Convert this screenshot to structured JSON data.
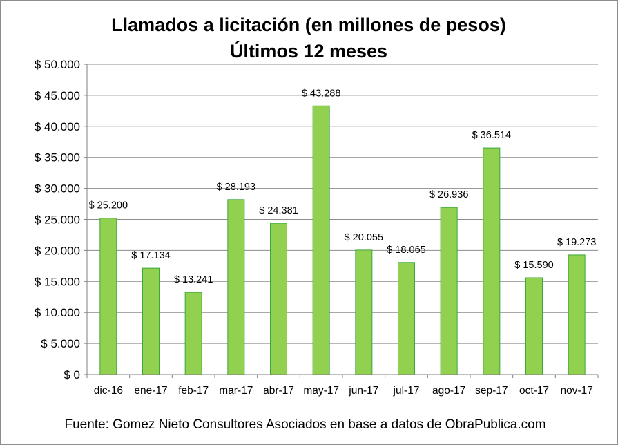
{
  "chart_data": {
    "type": "bar",
    "title": "Llamados a licitación (en millones de pesos)",
    "subtitle": "Últimos 12 meses",
    "categories": [
      "dic-16",
      "ene-17",
      "feb-17",
      "mar-17",
      "abr-17",
      "may-17",
      "jun-17",
      "jul-17",
      "ago-17",
      "sep-17",
      "oct-17",
      "nov-17"
    ],
    "values": [
      25200,
      17134,
      13241,
      28193,
      24381,
      43288,
      20055,
      18065,
      26936,
      36514,
      15590,
      19273
    ],
    "data_labels": [
      "$ 25.200",
      "$ 17.134",
      "$ 13.241",
      "$ 28.193",
      "$ 24.381",
      "$ 43.288",
      "$ 20.055",
      "$ 18.065",
      "$ 26.936",
      "$ 36.514",
      "$ 15.590",
      "$ 19.273"
    ],
    "yticks": [
      0,
      5000,
      10000,
      15000,
      20000,
      25000,
      30000,
      35000,
      40000,
      45000,
      50000
    ],
    "ytick_labels": [
      "$ 0",
      "$ 5.000",
      "$ 10.000",
      "$ 15.000",
      "$ 20.000",
      "$ 25.000",
      "$ 30.000",
      "$ 35.000",
      "$ 40.000",
      "$ 45.000",
      "$ 50.000"
    ],
    "ylim": [
      0,
      50000
    ],
    "xlabel": "",
    "ylabel": "",
    "grid": true,
    "legend": "none",
    "source": "Fuente: Gomez Nieto Consultores Asociados en base a datos de ObraPublica.com",
    "colors": {
      "bar_fill": "#92d050",
      "bar_stroke": "#3aa83a",
      "grid": "#8c8c8c",
      "axis": "#7f7f7f"
    }
  }
}
